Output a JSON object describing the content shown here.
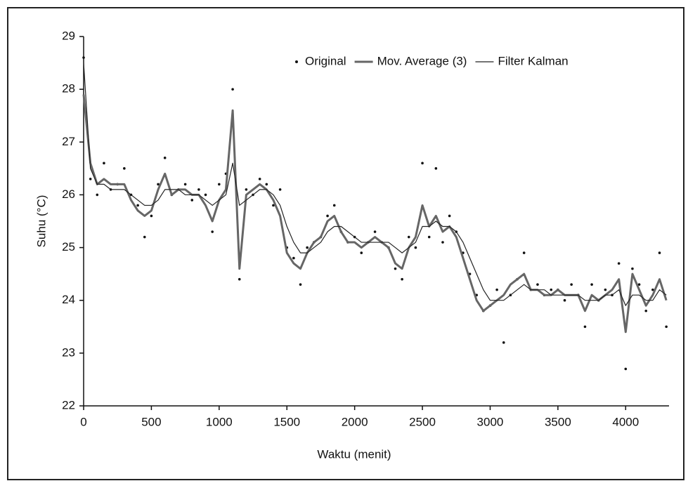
{
  "chart_data": {
    "type": "line",
    "xlabel": "Waktu (menit)",
    "ylabel": "Suhu (°C)",
    "x": [
      0,
      50,
      100,
      150,
      200,
      250,
      300,
      350,
      400,
      450,
      500,
      550,
      600,
      650,
      700,
      750,
      800,
      850,
      900,
      950,
      1000,
      1050,
      1100,
      1150,
      1200,
      1250,
      1300,
      1350,
      1400,
      1450,
      1500,
      1550,
      1600,
      1650,
      1700,
      1750,
      1800,
      1850,
      1900,
      1950,
      2000,
      2050,
      2100,
      2150,
      2200,
      2250,
      2300,
      2350,
      2400,
      2450,
      2500,
      2550,
      2600,
      2650,
      2700,
      2750,
      2800,
      2850,
      2900,
      2950,
      3000,
      3050,
      3100,
      3150,
      3200,
      3250,
      3300,
      3350,
      3400,
      3450,
      3500,
      3550,
      3600,
      3650,
      3700,
      3750,
      3800,
      3850,
      3900,
      3950,
      4000,
      4050,
      4100,
      4150,
      4200,
      4250,
      4300
    ],
    "series": [
      {
        "name": "Original",
        "mode": "markers",
        "color": "#111111",
        "values": [
          28.6,
          26.3,
          26.0,
          26.6,
          26.1,
          26.2,
          26.5,
          26.0,
          25.8,
          25.2,
          25.6,
          26.2,
          26.7,
          26.0,
          26.1,
          26.2,
          25.9,
          26.1,
          26.0,
          25.3,
          26.2,
          26.4,
          28.0,
          24.4,
          26.1,
          26.0,
          26.3,
          26.2,
          25.8,
          26.1,
          25.0,
          24.8,
          24.3,
          25.0,
          25.1,
          25.2,
          25.6,
          25.8,
          25.3,
          25.1,
          25.2,
          24.9,
          25.1,
          25.3,
          25.1,
          25.0,
          24.6,
          24.4,
          25.2,
          25.0,
          26.6,
          25.2,
          26.5,
          25.1,
          25.6,
          25.3,
          24.9,
          24.5,
          24.1,
          23.8,
          23.9,
          24.2,
          23.2,
          24.1,
          24.4,
          24.9,
          24.2,
          24.3,
          24.1,
          24.2,
          24.2,
          24.0,
          24.3,
          24.1,
          23.5,
          24.3,
          24.0,
          24.2,
          24.1,
          24.7,
          22.7,
          24.6,
          24.3,
          23.8,
          24.2,
          24.9,
          23.5
        ]
      },
      {
        "name": "Mov. Average (3)",
        "mode": "thick-line",
        "color": "#666666",
        "values": [
          27.9,
          26.6,
          26.2,
          26.3,
          26.2,
          26.2,
          26.2,
          25.9,
          25.7,
          25.6,
          25.7,
          26.1,
          26.4,
          26.0,
          26.1,
          26.1,
          26.0,
          26.0,
          25.8,
          25.5,
          25.9,
          26.1,
          27.6,
          24.6,
          26.0,
          26.1,
          26.2,
          26.1,
          25.9,
          25.6,
          24.9,
          24.7,
          24.6,
          24.9,
          25.1,
          25.2,
          25.5,
          25.6,
          25.3,
          25.1,
          25.1,
          25.0,
          25.1,
          25.2,
          25.1,
          25.0,
          24.7,
          24.6,
          25.0,
          25.2,
          25.8,
          25.4,
          25.6,
          25.3,
          25.4,
          25.2,
          24.8,
          24.4,
          24.0,
          23.8,
          23.9,
          24.0,
          24.1,
          24.3,
          24.4,
          24.5,
          24.2,
          24.2,
          24.1,
          24.1,
          24.2,
          24.1,
          24.1,
          24.1,
          23.8,
          24.1,
          24.0,
          24.1,
          24.2,
          24.4,
          23.4,
          24.5,
          24.2,
          23.9,
          24.1,
          24.4,
          24.0
        ]
      },
      {
        "name": "Filter Kalman",
        "mode": "thin-line",
        "color": "#222222",
        "values": [
          28.5,
          26.5,
          26.2,
          26.2,
          26.1,
          26.1,
          26.1,
          26.0,
          25.9,
          25.8,
          25.8,
          25.9,
          26.1,
          26.1,
          26.1,
          26.0,
          26.0,
          26.0,
          25.9,
          25.8,
          25.9,
          26.0,
          26.6,
          25.8,
          25.9,
          26.0,
          26.1,
          26.1,
          26.0,
          25.8,
          25.4,
          25.1,
          24.9,
          24.9,
          25.0,
          25.1,
          25.3,
          25.4,
          25.4,
          25.3,
          25.2,
          25.1,
          25.1,
          25.1,
          25.1,
          25.1,
          25.0,
          24.9,
          25.0,
          25.1,
          25.4,
          25.4,
          25.5,
          25.4,
          25.4,
          25.3,
          25.1,
          24.8,
          24.5,
          24.2,
          24.0,
          24.0,
          24.0,
          24.1,
          24.2,
          24.3,
          24.2,
          24.2,
          24.2,
          24.1,
          24.1,
          24.1,
          24.1,
          24.1,
          24.0,
          24.0,
          24.0,
          24.1,
          24.1,
          24.2,
          23.9,
          24.1,
          24.1,
          24.0,
          24.0,
          24.2,
          24.1
        ]
      }
    ],
    "xlim": [
      0,
      4320
    ],
    "xticks": [
      0,
      500,
      1000,
      1500,
      2000,
      2500,
      3000,
      3500,
      4000
    ],
    "ylim": [
      22,
      29
    ],
    "yticks": [
      22,
      23,
      24,
      25,
      26,
      27,
      28,
      29
    ],
    "grid": false,
    "legend": "top-right"
  }
}
